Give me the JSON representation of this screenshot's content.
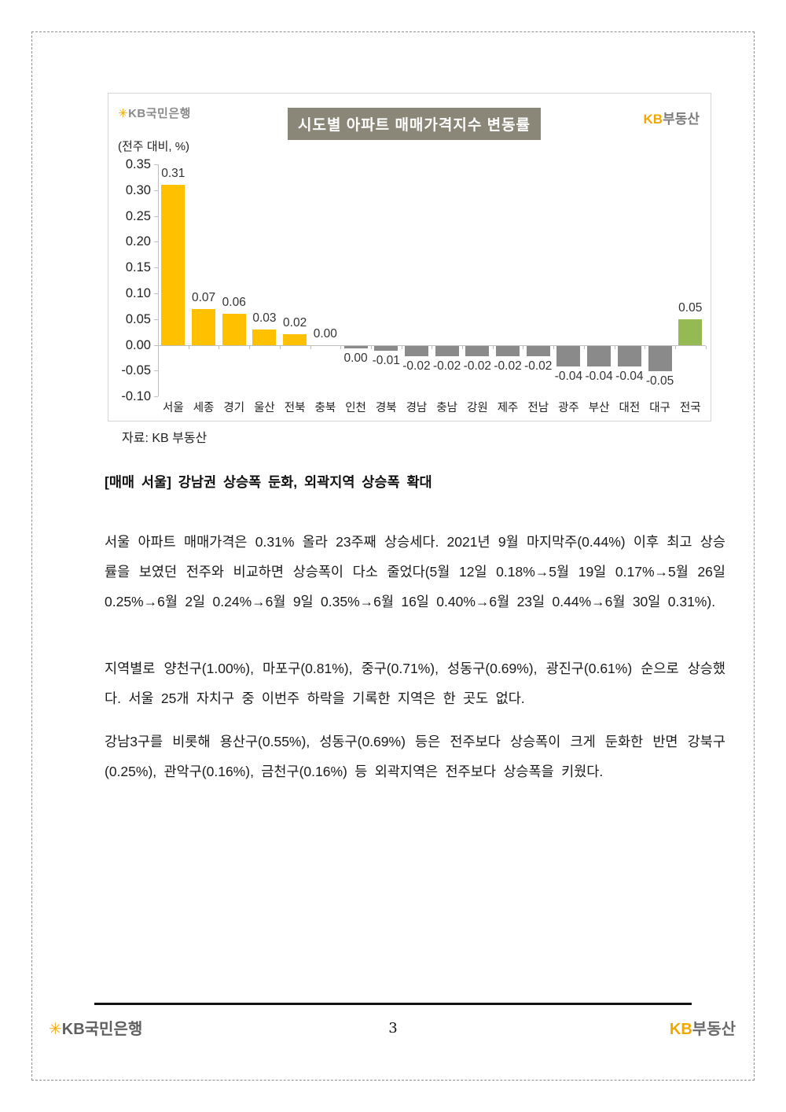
{
  "chart": {
    "logo_left": {
      "star": "✳",
      "text": "KB국민은행"
    },
    "logo_right": {
      "kb": "KB",
      "name": "부동산"
    },
    "title": "시도별 아파트 매매가격지수 변동률",
    "unit_label": "(전주 대비, %)",
    "source": "자료: KB 부동산"
  },
  "chart_data": {
    "type": "bar",
    "title": "시도별 아파트 매매가격지수 변동률",
    "ylabel": "(전주 대비, %)",
    "categories": [
      "서울",
      "세종",
      "경기",
      "울산",
      "전북",
      "충북",
      "인천",
      "경북",
      "경남",
      "충남",
      "강원",
      "제주",
      "전남",
      "광주",
      "부산",
      "대전",
      "대구",
      "전국"
    ],
    "values": [
      0.31,
      0.07,
      0.06,
      0.03,
      0.02,
      0.0,
      0.0,
      -0.01,
      -0.02,
      -0.02,
      -0.02,
      -0.02,
      -0.02,
      -0.04,
      -0.04,
      -0.04,
      -0.05,
      0.05
    ],
    "value_labels": [
      "0.31",
      "0.07",
      "0.06",
      "0.03",
      "0.02",
      "0.00",
      "0.00",
      "-0.01",
      "-0.02",
      "-0.02",
      "-0.02",
      "-0.02",
      "-0.02",
      "-0.04",
      "-0.04",
      "-0.04",
      "-0.05",
      "0.05"
    ],
    "label_side": [
      "above",
      "above",
      "above",
      "above",
      "above",
      "above",
      "below",
      "below",
      "below",
      "below",
      "below",
      "below",
      "below",
      "below",
      "below",
      "below",
      "below",
      "above"
    ],
    "bar_colors": [
      "#FFC000",
      "#FFC000",
      "#FFC000",
      "#FFC000",
      "#FFC000",
      "#FFC000",
      "#8A8A8A",
      "#8A8A8A",
      "#8A8A8A",
      "#8A8A8A",
      "#8A8A8A",
      "#8A8A8A",
      "#8A8A8A",
      "#8A8A8A",
      "#8A8A8A",
      "#8A8A8A",
      "#8A8A8A",
      "#95B953"
    ],
    "ytick_labels": [
      "0.35",
      "0.30",
      "0.25",
      "0.20",
      "0.15",
      "0.10",
      "0.05",
      "0.00",
      "-0.05",
      "-0.10"
    ],
    "ylim": [
      -0.1,
      0.35
    ],
    "grid": false,
    "legend": null,
    "accent_colors": {
      "positive": "#FFC000",
      "negative": "#8A8A8A",
      "national": "#95B953",
      "title_bg": "#8B8778"
    }
  },
  "body": {
    "heading": "[매매 서울] 강남권 상승폭 둔화, 외곽지역 상승폭 확대",
    "paragraphs": [
      "서울 아파트 매매가격은 0.31% 올라 23주째 상승세다. 2021년 9월 마지막주(0.44%) 이후 최고 상승률을 보였던 전주와 비교하면 상승폭이 다소 줄었다(5월 12일 0.18%→5월 19일 0.17%→5월 26일 0.25%→6월 2일 0.24%→6월 9일 0.35%→6월 16일 0.40%→6월 23일 0.44%→6월 30일 0.31%).",
      "지역별로 양천구(1.00%), 마포구(0.81%), 중구(0.71%), 성동구(0.69%), 광진구(0.61%) 순으로 상승했다. 서울 25개 자치구 중 이번주 하락을 기록한 지역은 한 곳도 없다.",
      "강남3구를 비롯해 용산구(0.55%), 성동구(0.69%) 등은 전주보다 상승폭이 크게 둔화한 반면 강북구(0.25%), 관악구(0.16%), 금천구(0.16%) 등 외곽지역은 전주보다 상승폭을 키웠다."
    ]
  },
  "footer": {
    "logo_left": {
      "star": "✳",
      "text": "KB국민은행"
    },
    "logo_right": {
      "kb": "KB",
      "name": "부동산"
    },
    "page_number": "3"
  }
}
